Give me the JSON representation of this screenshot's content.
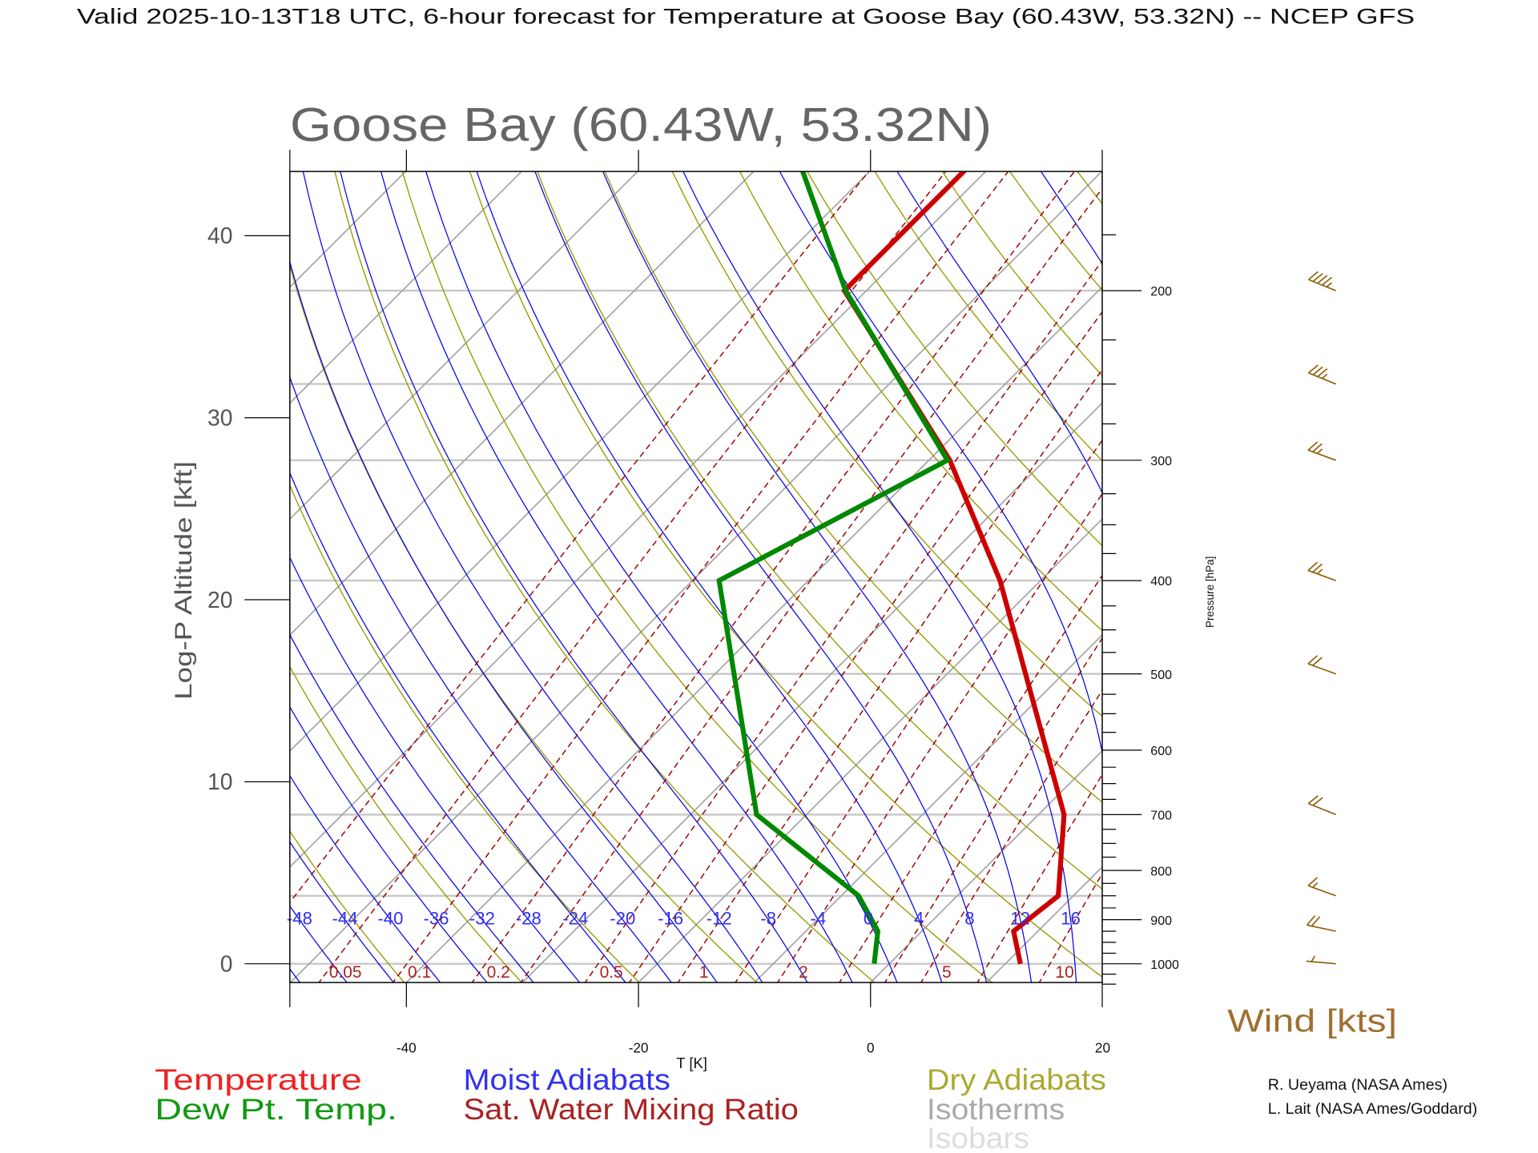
{
  "header": {
    "title": "Valid 2025-10-13T18 UTC, 6-hour forecast for Temperature at Goose Bay (60.43W, 53.32N) -- NCEP GFS"
  },
  "chart_data": {
    "type": "line",
    "subtype": "skew-t log-p",
    "title": "Goose Bay (60.43W, 53.32N)",
    "xlabel": "T [K]",
    "ylabel": "Log-P Altitude [kft]",
    "y2label": "Pressure [hPa]",
    "xlim": [
      -50,
      20
    ],
    "plim": [
      1050,
      150
    ],
    "x_ticks": [
      -40,
      -20,
      0,
      20
    ],
    "x_tick_labels": [
      "-40",
      "-20",
      "0",
      "20"
    ],
    "altitude_ticks": [
      0,
      10,
      20,
      30,
      40
    ],
    "altitude_tick_labels": [
      "0",
      "10",
      "20",
      "30",
      "40"
    ],
    "pressure_ticks": [
      1000,
      900,
      800,
      700,
      600,
      500,
      400,
      300,
      200
    ],
    "pressure_tick_labels": [
      "1000",
      "900",
      "800",
      "700",
      "600",
      "500",
      "400",
      "300",
      "200"
    ],
    "isobars": [
      1000,
      850,
      700,
      500,
      400,
      300,
      250,
      200
    ],
    "isotherm_step": 10,
    "moist_adiabat_labels": [
      -48,
      -44,
      -40,
      -36,
      -32,
      -28,
      -24,
      -20,
      -16,
      -12,
      -8,
      -4,
      0,
      4,
      8,
      12,
      16
    ],
    "mixing_ratio_labels": [
      "0.05",
      "0.1",
      "0.2",
      "0.5",
      "1",
      "2",
      "5",
      "10"
    ],
    "series": [
      {
        "name": "Temperature",
        "color": "#cc0000",
        "points": [
          {
            "p": 1000,
            "t": 11.3
          },
          {
            "p": 925,
            "t": 7.9
          },
          {
            "p": 850,
            "t": 8.7
          },
          {
            "p": 700,
            "t": 2.2
          },
          {
            "p": 400,
            "t": -23.5
          },
          {
            "p": 300,
            "t": -38.2
          },
          {
            "p": 200,
            "t": -61.9
          },
          {
            "p": 150,
            "t": -61.9
          }
        ]
      },
      {
        "name": "Dew Pt. Temp.",
        "color": "#008800",
        "points": [
          {
            "p": 1000,
            "t": -1.3
          },
          {
            "p": 925,
            "t": -3.8
          },
          {
            "p": 850,
            "t": -8.5
          },
          {
            "p": 700,
            "t": -24.3
          },
          {
            "p": 400,
            "t": -47.7
          },
          {
            "p": 300,
            "t": -38.4
          },
          {
            "p": 200,
            "t": -61.8
          },
          {
            "p": 150,
            "t": -75.9
          }
        ]
      }
    ],
    "wind": {
      "label": "Wind [kts]",
      "color": "#8b5a00",
      "barbs": [
        {
          "p": 200,
          "speed_kts": 45,
          "dir_deg": 292
        },
        {
          "p": 250,
          "speed_kts": 35,
          "dir_deg": 292
        },
        {
          "p": 300,
          "speed_kts": 25,
          "dir_deg": 290
        },
        {
          "p": 400,
          "speed_kts": 25,
          "dir_deg": 290
        },
        {
          "p": 500,
          "speed_kts": 20,
          "dir_deg": 290
        },
        {
          "p": 700,
          "speed_kts": 20,
          "dir_deg": 292
        },
        {
          "p": 850,
          "speed_kts": 15,
          "dir_deg": 290
        },
        {
          "p": 925,
          "speed_kts": 20,
          "dir_deg": 282
        },
        {
          "p": 1000,
          "speed_kts": 5,
          "dir_deg": 275
        }
      ]
    },
    "legend": [
      {
        "label": "Temperature",
        "color": "#ee2222"
      },
      {
        "label": "Dew Pt. Temp.",
        "color": "#119911"
      },
      {
        "label": "Moist Adiabats",
        "color": "#3333ee"
      },
      {
        "label": "Sat. Water Mixing Ratio",
        "color": "#aa2222"
      },
      {
        "label": "Dry Adiabats",
        "color": "#aaaa33"
      },
      {
        "label": "Isotherms",
        "color": "#aaaaaa"
      },
      {
        "label": "Isobars",
        "color": "#dddddd"
      }
    ],
    "credits": [
      "R. Ueyama (NASA Ames)",
      "L. Lait (NASA Ames/Goddard)"
    ]
  }
}
